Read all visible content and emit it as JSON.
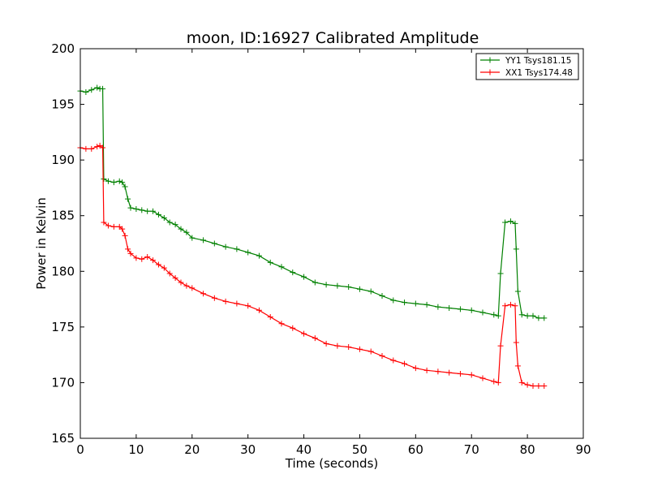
{
  "chart_data": {
    "type": "line",
    "title": "moon, ID:16927 Calibrated Amplitude",
    "xlabel": "Time (seconds)",
    "ylabel": "Power in Kelvin",
    "xlim": [
      0,
      90
    ],
    "ylim": [
      165,
      200
    ],
    "xticks": [
      0,
      10,
      20,
      30,
      40,
      50,
      60,
      70,
      80,
      90
    ],
    "yticks": [
      165,
      170,
      175,
      180,
      185,
      190,
      195,
      200
    ],
    "grid": false,
    "legend_position": "top-right",
    "marker": "plus",
    "series": [
      {
        "name": "YY1 Tsys181.15",
        "color": "#008000",
        "x": [
          0,
          1,
          2,
          3,
          3.5,
          4,
          4.2,
          5,
          6,
          7,
          7.5,
          8,
          8.5,
          9,
          10,
          11,
          12,
          13,
          14,
          15,
          16,
          17,
          18,
          19,
          20,
          22,
          24,
          26,
          28,
          30,
          32,
          34,
          36,
          38,
          40,
          42,
          44,
          46,
          48,
          50,
          52,
          54,
          56,
          58,
          60,
          62,
          64,
          66,
          68,
          70,
          72,
          74,
          74.8,
          75.2,
          76,
          77,
          77.8,
          78,
          78.3,
          79,
          80,
          81,
          82,
          83
        ],
        "y": [
          196.2,
          196.1,
          196.3,
          196.5,
          196.4,
          196.4,
          188.3,
          188.1,
          188.0,
          188.1,
          188.0,
          187.6,
          186.5,
          185.7,
          185.6,
          185.5,
          185.4,
          185.4,
          185.1,
          184.8,
          184.4,
          184.2,
          183.8,
          183.5,
          183.0,
          182.8,
          182.5,
          182.2,
          182.0,
          181.7,
          181.4,
          180.8,
          180.4,
          179.9,
          179.5,
          179.0,
          178.8,
          178.7,
          178.6,
          178.4,
          178.2,
          177.8,
          177.4,
          177.2,
          177.1,
          177.0,
          176.8,
          176.7,
          176.6,
          176.5,
          176.3,
          176.1,
          176.0,
          179.8,
          184.4,
          184.5,
          184.3,
          182.0,
          178.2,
          176.1,
          176.0,
          176.0,
          175.8,
          175.8
        ]
      },
      {
        "name": "XX1 Tsys174.48",
        "color": "#ff0000",
        "x": [
          0,
          1,
          2,
          3,
          3.5,
          4,
          4.2,
          5,
          6,
          7,
          7.5,
          8,
          8.5,
          9,
          10,
          11,
          12,
          13,
          14,
          15,
          16,
          17,
          18,
          19,
          20,
          22,
          24,
          26,
          28,
          30,
          32,
          34,
          36,
          38,
          40,
          42,
          44,
          46,
          48,
          50,
          52,
          54,
          56,
          58,
          60,
          62,
          64,
          66,
          68,
          70,
          72,
          74,
          74.8,
          75.2,
          76,
          77,
          77.8,
          78,
          78.3,
          79,
          80,
          81,
          82,
          83
        ],
        "y": [
          191.1,
          191.0,
          191.0,
          191.2,
          191.3,
          191.1,
          184.4,
          184.1,
          184.0,
          184.0,
          183.8,
          183.2,
          182.0,
          181.6,
          181.2,
          181.1,
          181.3,
          181.0,
          180.6,
          180.3,
          179.8,
          179.4,
          179.0,
          178.7,
          178.5,
          178.0,
          177.6,
          177.3,
          177.1,
          176.9,
          176.5,
          175.9,
          175.3,
          174.9,
          174.4,
          174.0,
          173.5,
          173.3,
          173.2,
          173.0,
          172.8,
          172.4,
          172.0,
          171.7,
          171.3,
          171.1,
          171.0,
          170.9,
          170.8,
          170.7,
          170.4,
          170.1,
          170.0,
          173.3,
          176.9,
          177.0,
          176.9,
          173.6,
          171.5,
          170.0,
          169.8,
          169.7,
          169.7,
          169.7
        ]
      }
    ]
  }
}
